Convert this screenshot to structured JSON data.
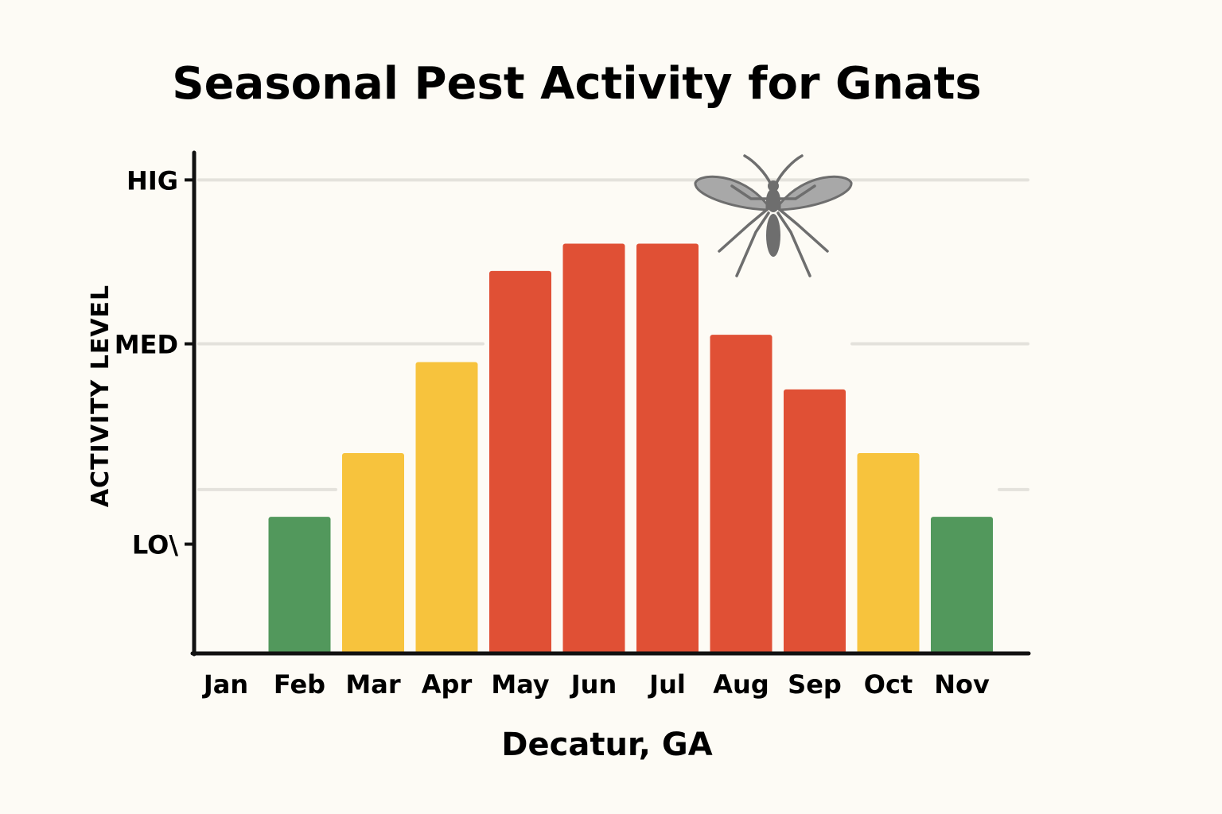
{
  "chart_data": {
    "type": "bar",
    "title": "Seasonal Pest Activity for Gnats",
    "xlabel": "Decatur, GA",
    "ylabel": "ACTIVITY LEVEL",
    "categories": [
      "Jan",
      "Feb",
      "Mar",
      "Apr",
      "May",
      "Jun",
      "Jul",
      "Aug",
      "Sep",
      "Oct",
      "Nov"
    ],
    "values": [
      0,
      1,
      1.7,
      2.7,
      3.7,
      4,
      4,
      3,
      2.4,
      1.7,
      1
    ],
    "bar_colors": [
      "#52985c",
      "#52985c",
      "#f7c33d",
      "#f7c33d",
      "#e05035",
      "#e05035",
      "#e05035",
      "#e05035",
      "#e05035",
      "#f7c33d",
      "#52985c"
    ],
    "ytick_labels": [
      "LO\\",
      "MED",
      "HIG"
    ],
    "ytick_values": [
      0.7,
      2.9,
      4.7
    ],
    "gridlines": [
      1.3,
      2.9,
      4.7
    ],
    "ylim": [
      -0.5,
      5
    ],
    "grid": true,
    "legend": "none",
    "icon": "gnat-icon",
    "colors": {
      "low": "#52985c",
      "medium": "#f7c33d",
      "high": "#e05035",
      "grid": "#e4e2dc",
      "axis": "#111111",
      "background": "#fdfbf5",
      "icon": "#6e6e6e"
    }
  }
}
